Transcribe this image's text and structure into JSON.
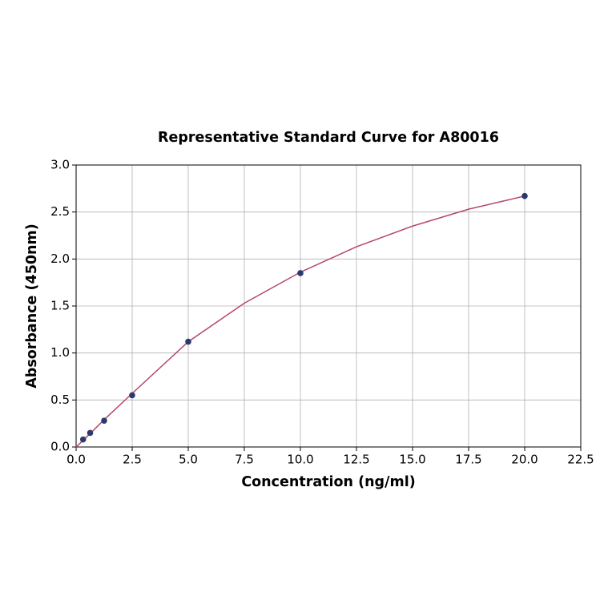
{
  "chart_data": {
    "type": "scatter",
    "title": "Representative Standard Curve for A80016",
    "x_label": "Concentration (ng/ml)",
    "y_label": "Absorbance (450nm)",
    "xlim": [
      0,
      22.5
    ],
    "ylim": [
      0,
      3.0
    ],
    "xticks": [
      {
        "value": 0,
        "label": "0.0"
      },
      {
        "value": 2.5,
        "label": "2.5"
      },
      {
        "value": 5,
        "label": "5.0"
      },
      {
        "value": 7.5,
        "label": "7.5"
      },
      {
        "value": 10,
        "label": "10.0"
      },
      {
        "value": 12.5,
        "label": "12.5"
      },
      {
        "value": 15,
        "label": "15.0"
      },
      {
        "value": 17.5,
        "label": "17.5"
      },
      {
        "value": 20,
        "label": "20.0"
      },
      {
        "value": 22.5,
        "label": "22.5"
      }
    ],
    "yticks": [
      {
        "value": 0,
        "label": "0.0"
      },
      {
        "value": 0.5,
        "label": "0.5"
      },
      {
        "value": 1,
        "label": "1.0"
      },
      {
        "value": 1.5,
        "label": "1.5"
      },
      {
        "value": 2,
        "label": "2.0"
      },
      {
        "value": 2.5,
        "label": "2.5"
      },
      {
        "value": 3,
        "label": "3.0"
      }
    ],
    "grid": true,
    "series": [
      {
        "type": "line",
        "color": "#b5476b",
        "x": [
          0,
          0.3125,
          1.25,
          2.5,
          5,
          7.5,
          10,
          12.5,
          15,
          17.5,
          20
        ],
        "values": [
          0,
          0.07,
          0.29,
          0.57,
          1.12,
          1.53,
          1.86,
          2.13,
          2.35,
          2.53,
          2.67
        ]
      },
      {
        "type": "scatter",
        "color": "#2b3a6b",
        "x": [
          0.3125,
          0.625,
          1.25,
          2.5,
          5,
          10,
          20
        ],
        "values": [
          0.08,
          0.15,
          0.28,
          0.55,
          1.12,
          1.85,
          2.67
        ]
      }
    ]
  }
}
